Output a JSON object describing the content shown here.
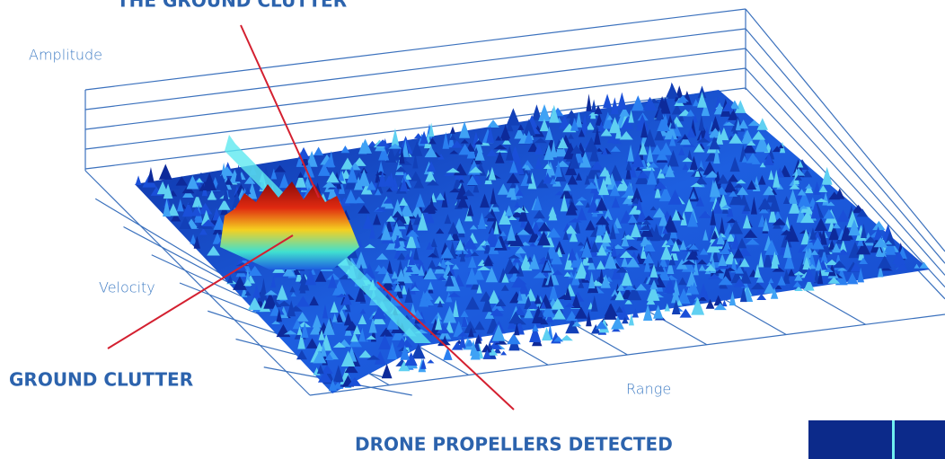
{
  "annotations": {
    "top": "THE GROUND CLUTTER",
    "left": "GROUND CLUTTER",
    "bottom": "DRONE PROPELLERS DETECTED"
  },
  "axes": {
    "amplitude": "Amplitude",
    "velocity": "Velocity",
    "range": "Range"
  }
}
